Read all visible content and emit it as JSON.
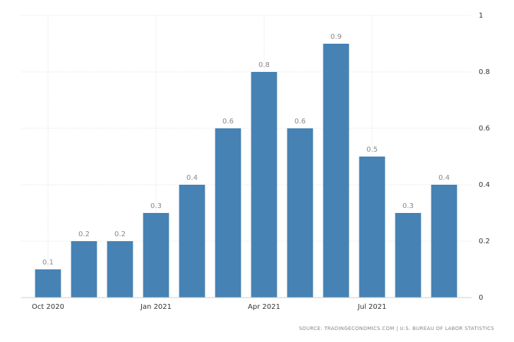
{
  "chart_data": {
    "type": "bar",
    "categories": [
      "Oct 2020",
      null,
      null,
      "Jan 2021",
      null,
      null,
      "Apr 2021",
      null,
      null,
      "Jul 2021",
      null,
      null
    ],
    "values": [
      0.1,
      0.2,
      0.2,
      0.3,
      0.4,
      0.6,
      0.8,
      0.6,
      0.9,
      0.5,
      0.3,
      0.4
    ],
    "color": "#4682b4",
    "ylim": [
      0,
      1
    ],
    "yticks": [
      0,
      0.2,
      0.4,
      0.6,
      0.8,
      1
    ],
    "grid": true,
    "source": "SOURCE: TRADINGECONOMICS.COM | U.S. BUREAU OF LABOR STATISTICS"
  }
}
